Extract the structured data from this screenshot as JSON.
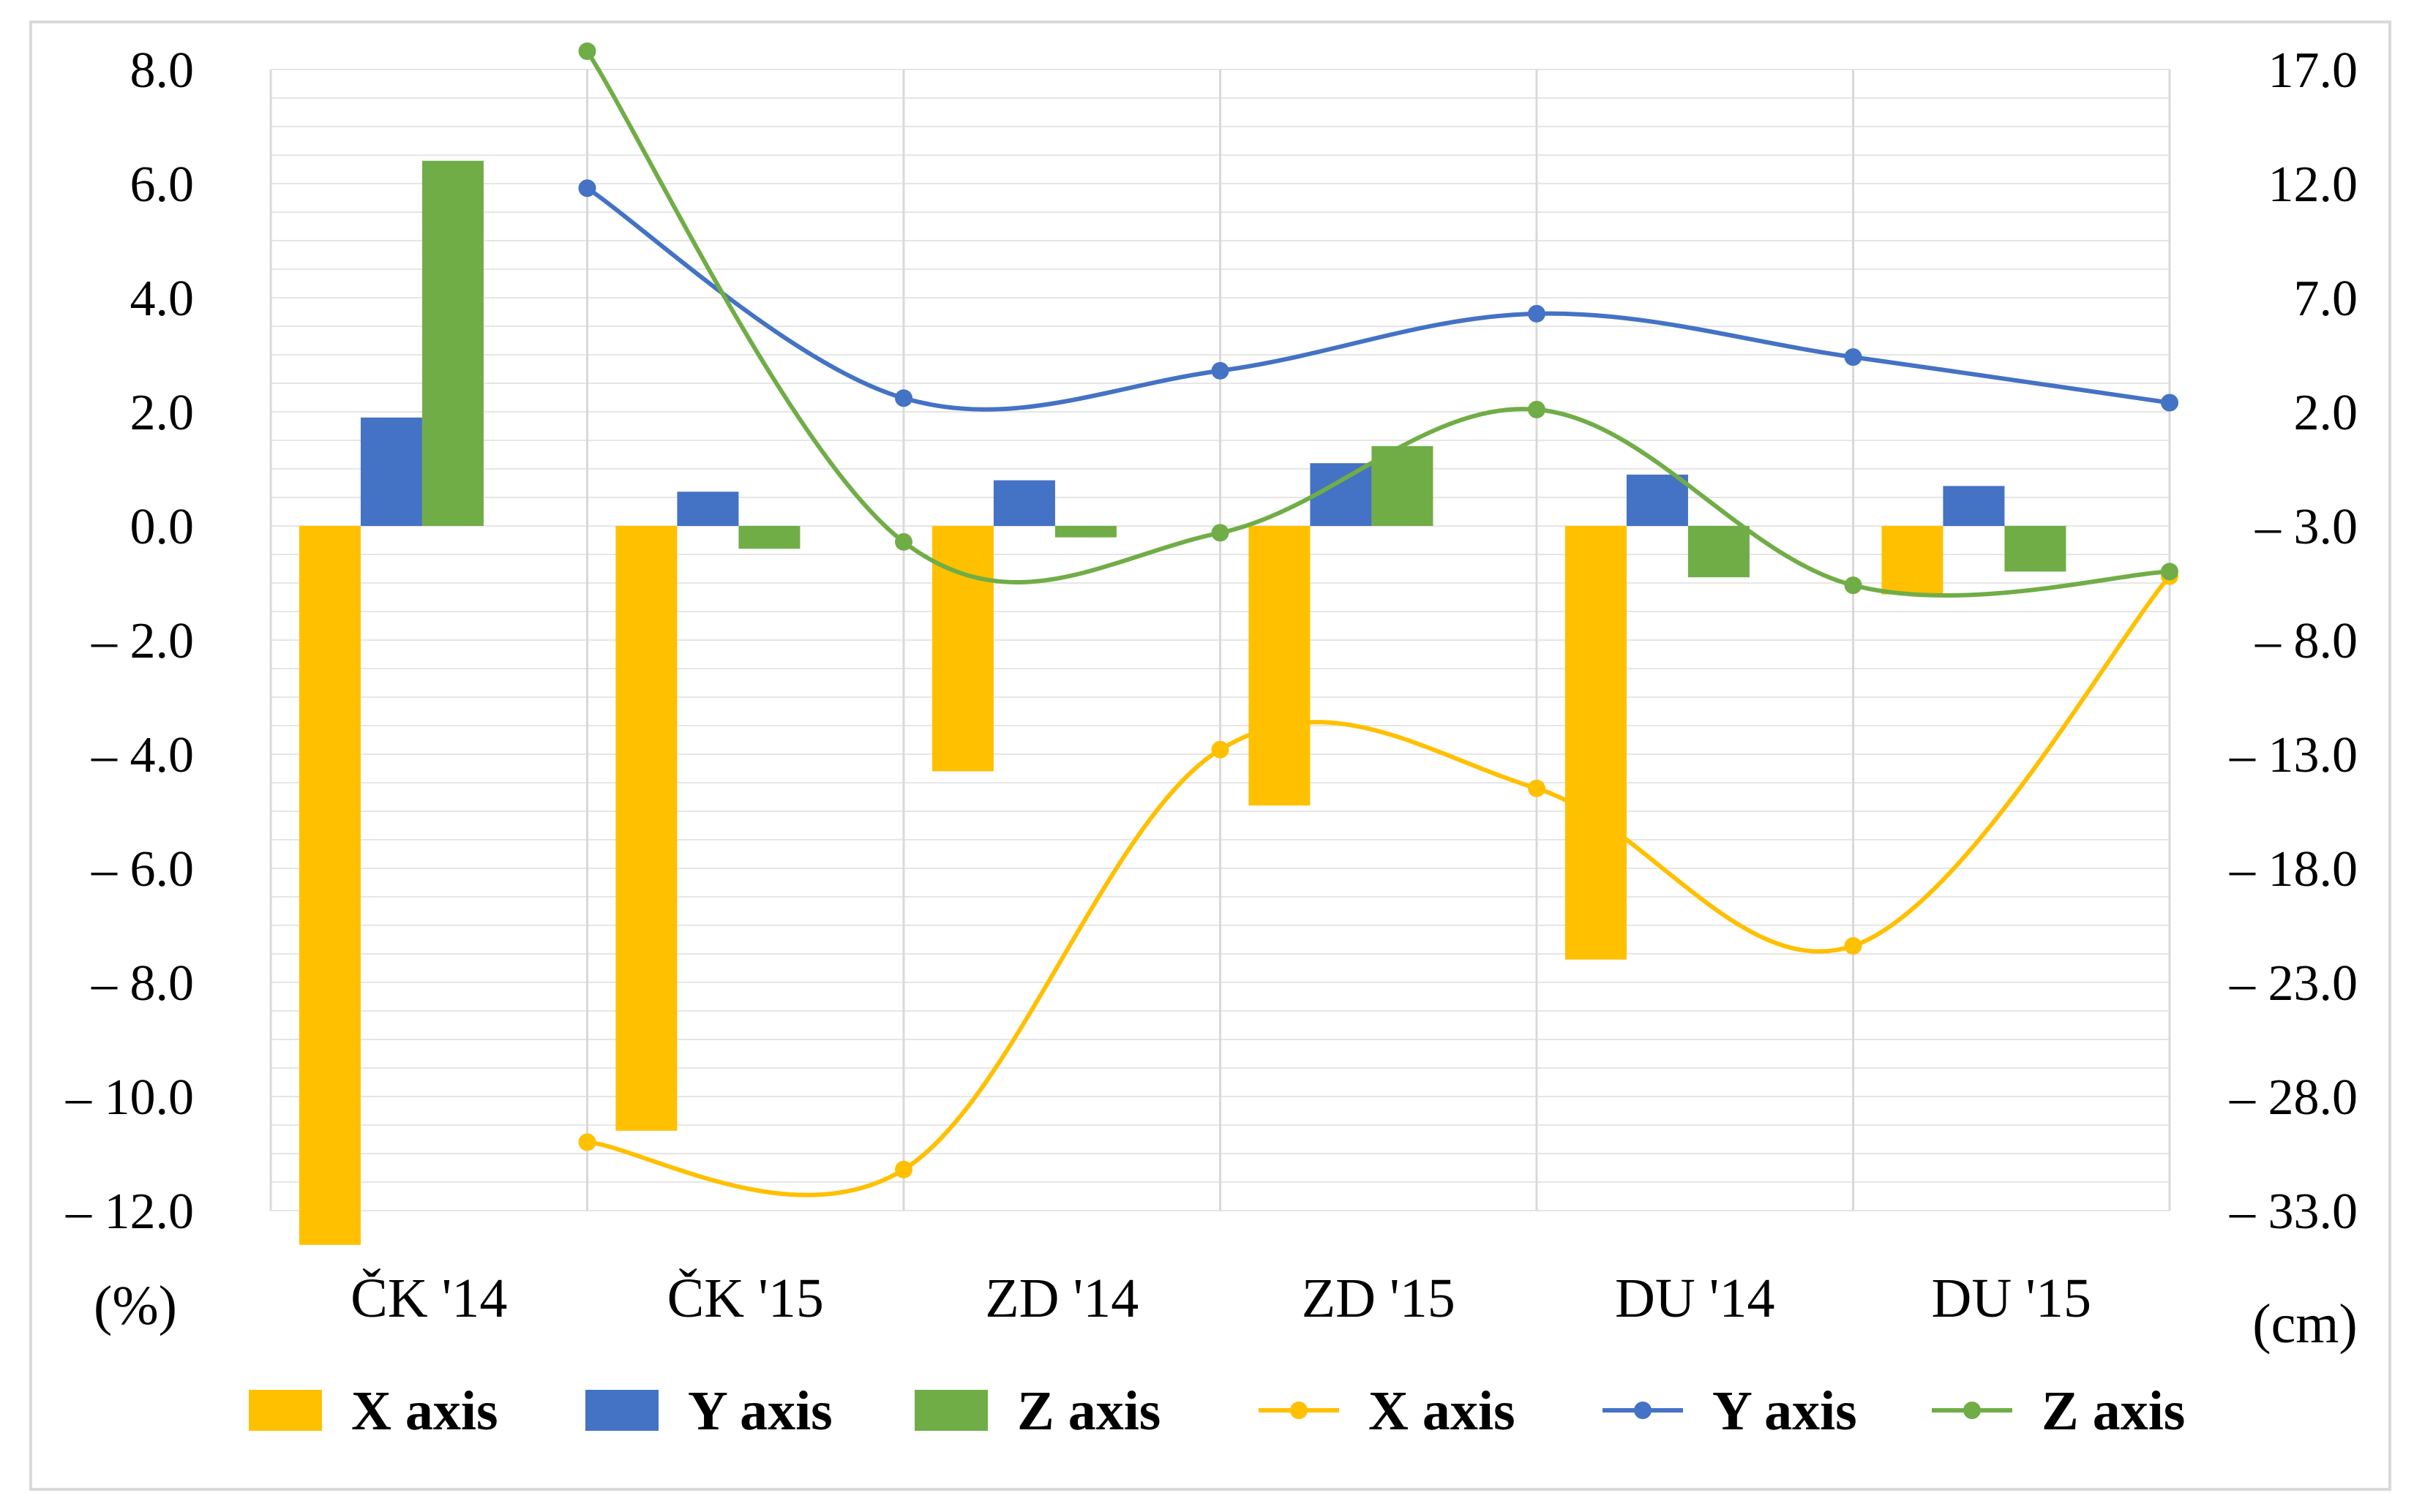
{
  "chart_data": {
    "type": "bar+line",
    "categories": [
      "ČK '14",
      "ČK '15",
      "ZD '14",
      "ZD '15",
      "DU '14",
      "DU '15"
    ],
    "left_axis": {
      "unit_label": "(%)",
      "range": [
        -12,
        8
      ],
      "ticks": [
        8,
        6,
        4,
        2,
        0,
        -2,
        -4,
        -6,
        -8,
        -10,
        -12
      ],
      "tick_labels": [
        "8.0",
        "6.0",
        "4.0",
        "2.0",
        "0.0",
        "– 2.0",
        "– 4.0",
        "– 6.0",
        "– 8.0",
        "– 10.0",
        "– 12.0"
      ]
    },
    "right_axis": {
      "unit_label": "(cm)",
      "range": [
        -33,
        17
      ],
      "ticks": [
        17,
        12,
        7,
        2,
        -3,
        -8,
        -13,
        -18,
        -23,
        -28,
        -33
      ],
      "tick_labels": [
        "17.0",
        "12.0",
        "7.0",
        "2.0",
        "– 3.0",
        "– 8.0",
        "– 13.0",
        "– 18.0",
        "– 23.0",
        "– 28.0",
        "– 33.0"
      ]
    },
    "bar_series": [
      {
        "name": "X axis",
        "axis": "left",
        "color": "#FFC000",
        "values": [
          -12.6,
          -10.6,
          -4.3,
          -4.9,
          -7.6,
          -1.2
        ]
      },
      {
        "name": "Y axis",
        "axis": "left",
        "color": "#4472C4",
        "values": [
          1.9,
          0.6,
          0.8,
          1.1,
          0.9,
          0.7
        ]
      },
      {
        "name": "Z axis",
        "axis": "left",
        "color": "#70AD47",
        "values": [
          6.4,
          -0.4,
          -0.2,
          1.4,
          -0.9,
          -0.8
        ]
      }
    ],
    "line_series": [
      {
        "name": "X axis",
        "axis": "right",
        "color": "#FFC000",
        "values": [
          -30.0,
          -31.2,
          -12.8,
          -14.5,
          -21.4,
          -5.2
        ]
      },
      {
        "name": "Y axis",
        "axis": "right",
        "color": "#4472C4",
        "values": [
          11.8,
          2.6,
          3.8,
          6.3,
          4.4,
          2.4
        ]
      },
      {
        "name": "Z axis",
        "axis": "right",
        "color": "#70AD47",
        "values": [
          17.8,
          -3.7,
          -3.3,
          2.1,
          -5.6,
          -5.0
        ]
      }
    ],
    "legend": {
      "position": "bottom",
      "entries": [
        {
          "label": "X axis",
          "kind": "bar",
          "color": "#FFC000"
        },
        {
          "label": "Y axis",
          "kind": "bar",
          "color": "#4472C4"
        },
        {
          "label": "Z axis",
          "kind": "bar",
          "color": "#70AD47"
        },
        {
          "label": "X axis",
          "kind": "line",
          "color": "#FFC000"
        },
        {
          "label": "Y axis",
          "kind": "line",
          "color": "#4472C4"
        },
        {
          "label": "Z axis",
          "kind": "line",
          "color": "#70AD47"
        }
      ]
    },
    "gridlines": true
  }
}
